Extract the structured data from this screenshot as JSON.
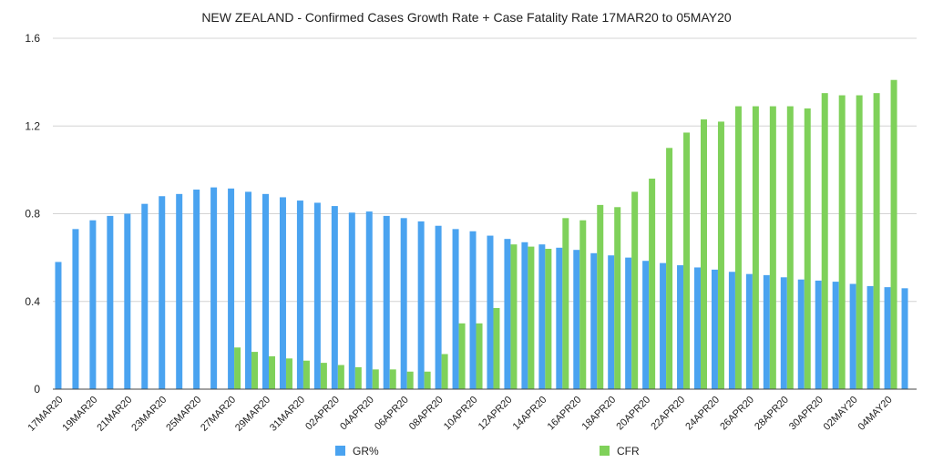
{
  "chart_data": {
    "type": "bar",
    "title": "NEW ZEALAND - Confirmed Cases Growth Rate + Case Fatality Rate 17MAR20 to 05MAY20",
    "xlabel": "",
    "ylabel": "",
    "ylim": [
      0,
      1.6
    ],
    "yticks": [
      "0",
      "0.4",
      "0.8",
      "1.2",
      "1.6"
    ],
    "grid": true,
    "legend_position": "bottom",
    "categories": [
      "17MAR20",
      "18MAR20",
      "19MAR20",
      "20MAR20",
      "21MAR20",
      "22MAR20",
      "23MAR20",
      "24MAR20",
      "25MAR20",
      "26MAR20",
      "27MAR20",
      "28MAR20",
      "29MAR20",
      "30MAR20",
      "31MAR20",
      "01APR20",
      "02APR20",
      "03APR20",
      "04APR20",
      "05APR20",
      "06APR20",
      "07APR20",
      "08APR20",
      "09APR20",
      "10APR20",
      "11APR20",
      "12APR20",
      "13APR20",
      "14APR20",
      "15APR20",
      "16APR20",
      "17APR20",
      "18APR20",
      "19APR20",
      "20APR20",
      "21APR20",
      "22APR20",
      "23APR20",
      "24APR20",
      "25APR20",
      "26APR20",
      "27APR20",
      "28APR20",
      "29APR20",
      "30APR20",
      "01MAY20",
      "02MAY20",
      "03MAY20",
      "04MAY20",
      "05MAY20"
    ],
    "tick_labels": [
      "17MAR20",
      "",
      "19MAR20",
      "",
      "21MAR20",
      "",
      "23MAR20",
      "",
      "25MAR20",
      "",
      "27MAR20",
      "",
      "29MAR20",
      "",
      "31MAR20",
      "",
      "02APR20",
      "",
      "04APR20",
      "",
      "06APR20",
      "",
      "08APR20",
      "",
      "10APR20",
      "",
      "12APR20",
      "",
      "14APR20",
      "",
      "16APR20",
      "",
      "18APR20",
      "",
      "20APR20",
      "",
      "22APR20",
      "",
      "24APR20",
      "",
      "26APR20",
      "",
      "28APR20",
      "",
      "30APR20",
      "",
      "02MAY20",
      "",
      "04MAY20",
      ""
    ],
    "series": [
      {
        "name": "GR%",
        "color": "#4aa3f0",
        "values": [
          0.58,
          0.73,
          0.77,
          0.79,
          0.8,
          0.845,
          0.88,
          0.89,
          0.91,
          0.92,
          0.915,
          0.9,
          0.89,
          0.875,
          0.86,
          0.85,
          0.835,
          0.805,
          0.81,
          0.79,
          0.78,
          0.765,
          0.745,
          0.73,
          0.72,
          0.7,
          0.685,
          0.67,
          0.66,
          0.645,
          0.635,
          0.62,
          0.61,
          0.6,
          0.585,
          0.575,
          0.565,
          0.555,
          0.545,
          0.535,
          0.525,
          0.52,
          0.51,
          0.5,
          0.495,
          0.49,
          0.48,
          0.47,
          0.465,
          0.46
        ]
      },
      {
        "name": "CFR",
        "color": "#7fd15a",
        "values": [
          null,
          null,
          null,
          null,
          null,
          null,
          null,
          null,
          null,
          null,
          0.19,
          0.17,
          0.15,
          0.14,
          0.13,
          0.12,
          0.11,
          0.1,
          0.09,
          0.09,
          0.08,
          0.08,
          0.16,
          0.3,
          0.3,
          0.37,
          0.66,
          0.65,
          0.64,
          0.78,
          0.77,
          0.84,
          0.83,
          0.9,
          0.96,
          1.1,
          1.17,
          1.23,
          1.22,
          1.29,
          1.29,
          1.29,
          1.29,
          1.28,
          1.35,
          1.34,
          1.34,
          1.35,
          1.41,
          null
        ]
      }
    ]
  }
}
